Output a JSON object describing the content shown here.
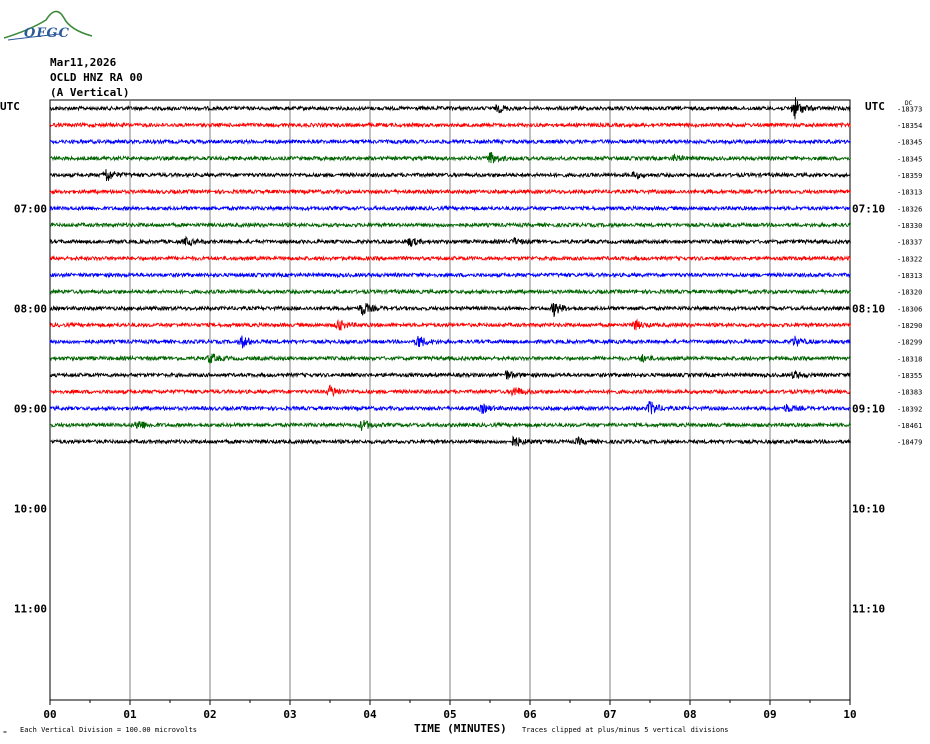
{
  "logo": {
    "text": "OFGC",
    "icon": "observatory-logo-icon"
  },
  "header": {
    "date": "Mar11,2026",
    "station": "OCLD HNZ RA 00",
    "component": "(A Vertical)"
  },
  "axis": {
    "left_tz": "UTC",
    "right_tz": "UTC",
    "xlabel": "TIME (MINUTES)",
    "footer_left": "Each Vertical Division =  100.00 microvolts",
    "footer_right": "Traces clipped at plus/minus 5 vertical divisions",
    "top_right_note": "DC"
  },
  "chart_data": {
    "type": "line",
    "title": "",
    "xlabel": "TIME (MINUTES)",
    "ylabel": "",
    "xlim": [
      0,
      10
    ],
    "x_ticks": [
      "00",
      "01",
      "02",
      "03",
      "04",
      "05",
      "06",
      "07",
      "08",
      "09",
      "10"
    ],
    "grid": true,
    "trace_colors": [
      "#000000",
      "#ff0000",
      "#0000ff",
      "#006400"
    ],
    "left_time_labels": [
      "07:00",
      "08:00",
      "09:00",
      "10:00",
      "11:00"
    ],
    "right_time_labels": [
      "07:10",
      "08:10",
      "09:10",
      "10:10",
      "11:10"
    ],
    "time_label_rows": [
      6,
      12,
      18,
      24,
      30
    ],
    "total_rows": 36,
    "traces": [
      {
        "row": 0,
        "offset": "-18373"
      },
      {
        "row": 1,
        "offset": "-18354"
      },
      {
        "row": 2,
        "offset": "-18345"
      },
      {
        "row": 3,
        "offset": "-18345"
      },
      {
        "row": 4,
        "offset": "-18359"
      },
      {
        "row": 5,
        "offset": "-18313"
      },
      {
        "row": 6,
        "offset": "-18326"
      },
      {
        "row": 7,
        "offset": "-18330"
      },
      {
        "row": 8,
        "offset": "-18337"
      },
      {
        "row": 9,
        "offset": "-18322"
      },
      {
        "row": 10,
        "offset": "-18313"
      },
      {
        "row": 11,
        "offset": "-18320"
      },
      {
        "row": 12,
        "offset": "-18306"
      },
      {
        "row": 13,
        "offset": "-18290"
      },
      {
        "row": 14,
        "offset": "-18299"
      },
      {
        "row": 15,
        "offset": "-18318"
      },
      {
        "row": 16,
        "offset": "-18355"
      },
      {
        "row": 17,
        "offset": "-18383"
      },
      {
        "row": 18,
        "offset": "-18392"
      },
      {
        "row": 19,
        "offset": "-18461"
      },
      {
        "row": 20,
        "offset": "-18479"
      }
    ],
    "events": [
      [
        0,
        9.3,
        1.6
      ],
      [
        0,
        5.6,
        0.5
      ],
      [
        3,
        5.5,
        0.9
      ],
      [
        3,
        7.8,
        0.4
      ],
      [
        4,
        0.7,
        1.0
      ],
      [
        4,
        7.3,
        0.4
      ],
      [
        8,
        1.7,
        0.5
      ],
      [
        8,
        4.5,
        0.6
      ],
      [
        8,
        5.8,
        0.4
      ],
      [
        12,
        3.9,
        1.0
      ],
      [
        12,
        6.3,
        1.0
      ],
      [
        13,
        3.6,
        0.8
      ],
      [
        13,
        7.3,
        0.7
      ],
      [
        14,
        2.4,
        0.8
      ],
      [
        14,
        4.6,
        0.9
      ],
      [
        14,
        9.3,
        0.7
      ],
      [
        15,
        2.0,
        0.7
      ],
      [
        15,
        7.4,
        0.4
      ],
      [
        16,
        5.7,
        0.6
      ],
      [
        16,
        9.3,
        0.5
      ],
      [
        17,
        3.5,
        0.8
      ],
      [
        17,
        5.8,
        0.7
      ],
      [
        18,
        5.4,
        0.6
      ],
      [
        18,
        7.5,
        1.0
      ],
      [
        18,
        9.2,
        0.5
      ],
      [
        19,
        1.1,
        0.8
      ],
      [
        19,
        3.9,
        0.8
      ],
      [
        20,
        5.8,
        0.8
      ],
      [
        20,
        6.6,
        0.4
      ]
    ]
  }
}
